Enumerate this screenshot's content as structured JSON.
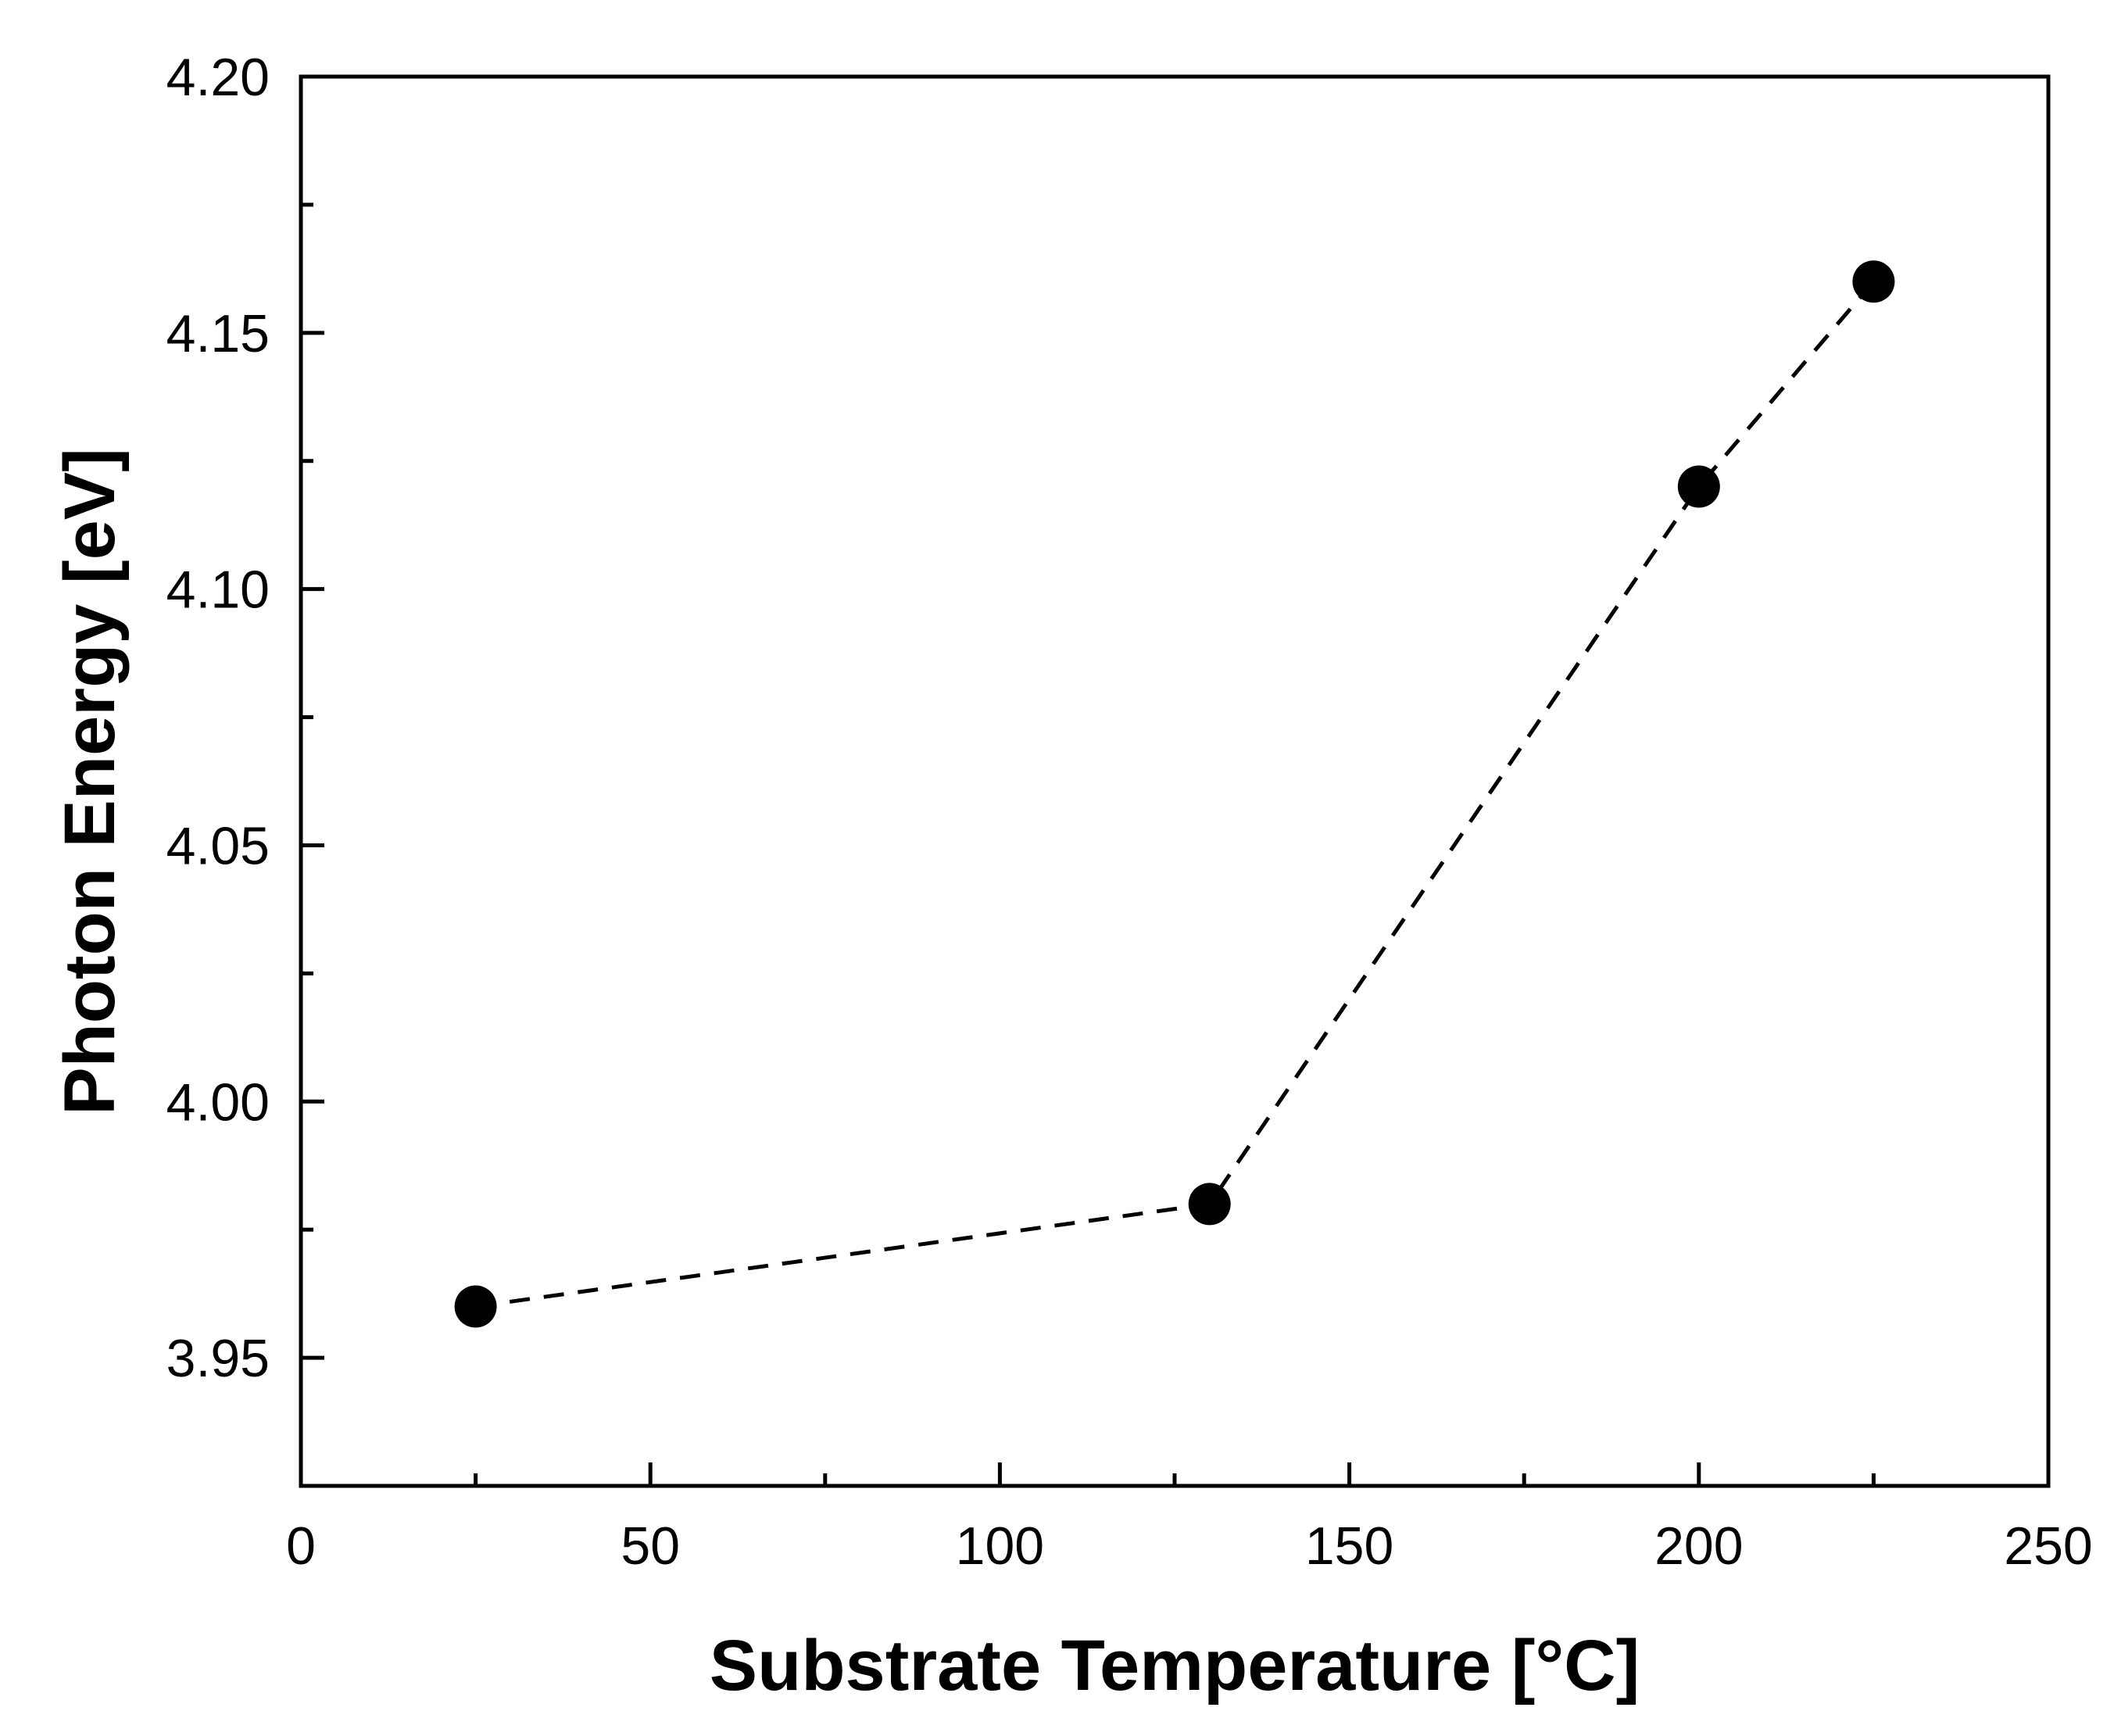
{
  "chart_data": {
    "type": "line",
    "title": "",
    "xlabel": "Substrate Temperature [°C]",
    "ylabel": "Photon Energy [eV]",
    "xlim": [
      0,
      250
    ],
    "ylim": [
      3.925,
      4.2
    ],
    "x_ticks": [
      "0",
      "50",
      "100",
      "150",
      "200",
      "250"
    ],
    "x_tick_values": [
      0,
      50,
      100,
      150,
      200,
      250
    ],
    "x_minor_ticks": [
      25,
      75,
      125,
      175,
      225
    ],
    "y_ticks": [
      "3.95",
      "4.00",
      "4.05",
      "4.10",
      "4.15",
      "4.20"
    ],
    "y_tick_values": [
      3.95,
      4.0,
      4.05,
      4.1,
      4.15,
      4.2
    ],
    "y_minor_ticks": [
      3.975,
      4.025,
      4.075,
      4.125,
      4.175
    ],
    "grid": false,
    "series": [
      {
        "name": "Photon Energy",
        "x": [
          25,
          130,
          200,
          225
        ],
        "y": [
          3.96,
          3.98,
          4.12,
          4.16
        ],
        "line_style": "dashed",
        "marker": "filled-circle",
        "color": "#000000"
      }
    ]
  }
}
